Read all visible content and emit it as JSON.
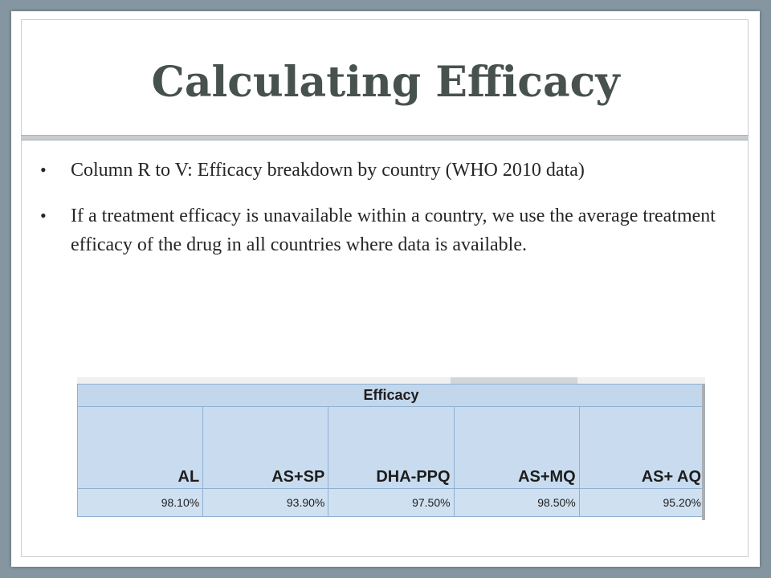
{
  "slide": {
    "title": "Calculating Efficacy",
    "bullets": [
      "Column R to V: Efficacy breakdown by country (WHO 2010 data)",
      "If a treatment efficacy is unavailable within a country, we use the average treatment efficacy of the drug in all countries where data is available."
    ]
  },
  "table": {
    "group_header": "Efficacy",
    "columns": [
      "AL",
      "AS+SP",
      "DHA-PPQ",
      "AS+MQ",
      "AS+ AQ"
    ],
    "values": [
      "98.10%",
      "93.90%",
      "97.50%",
      "98.50%",
      "95.20%"
    ]
  },
  "colors": {
    "background": "#8596a0",
    "title": "#47524f",
    "table_fill": "#c9dcef",
    "table_border": "#8fb0d2"
  }
}
